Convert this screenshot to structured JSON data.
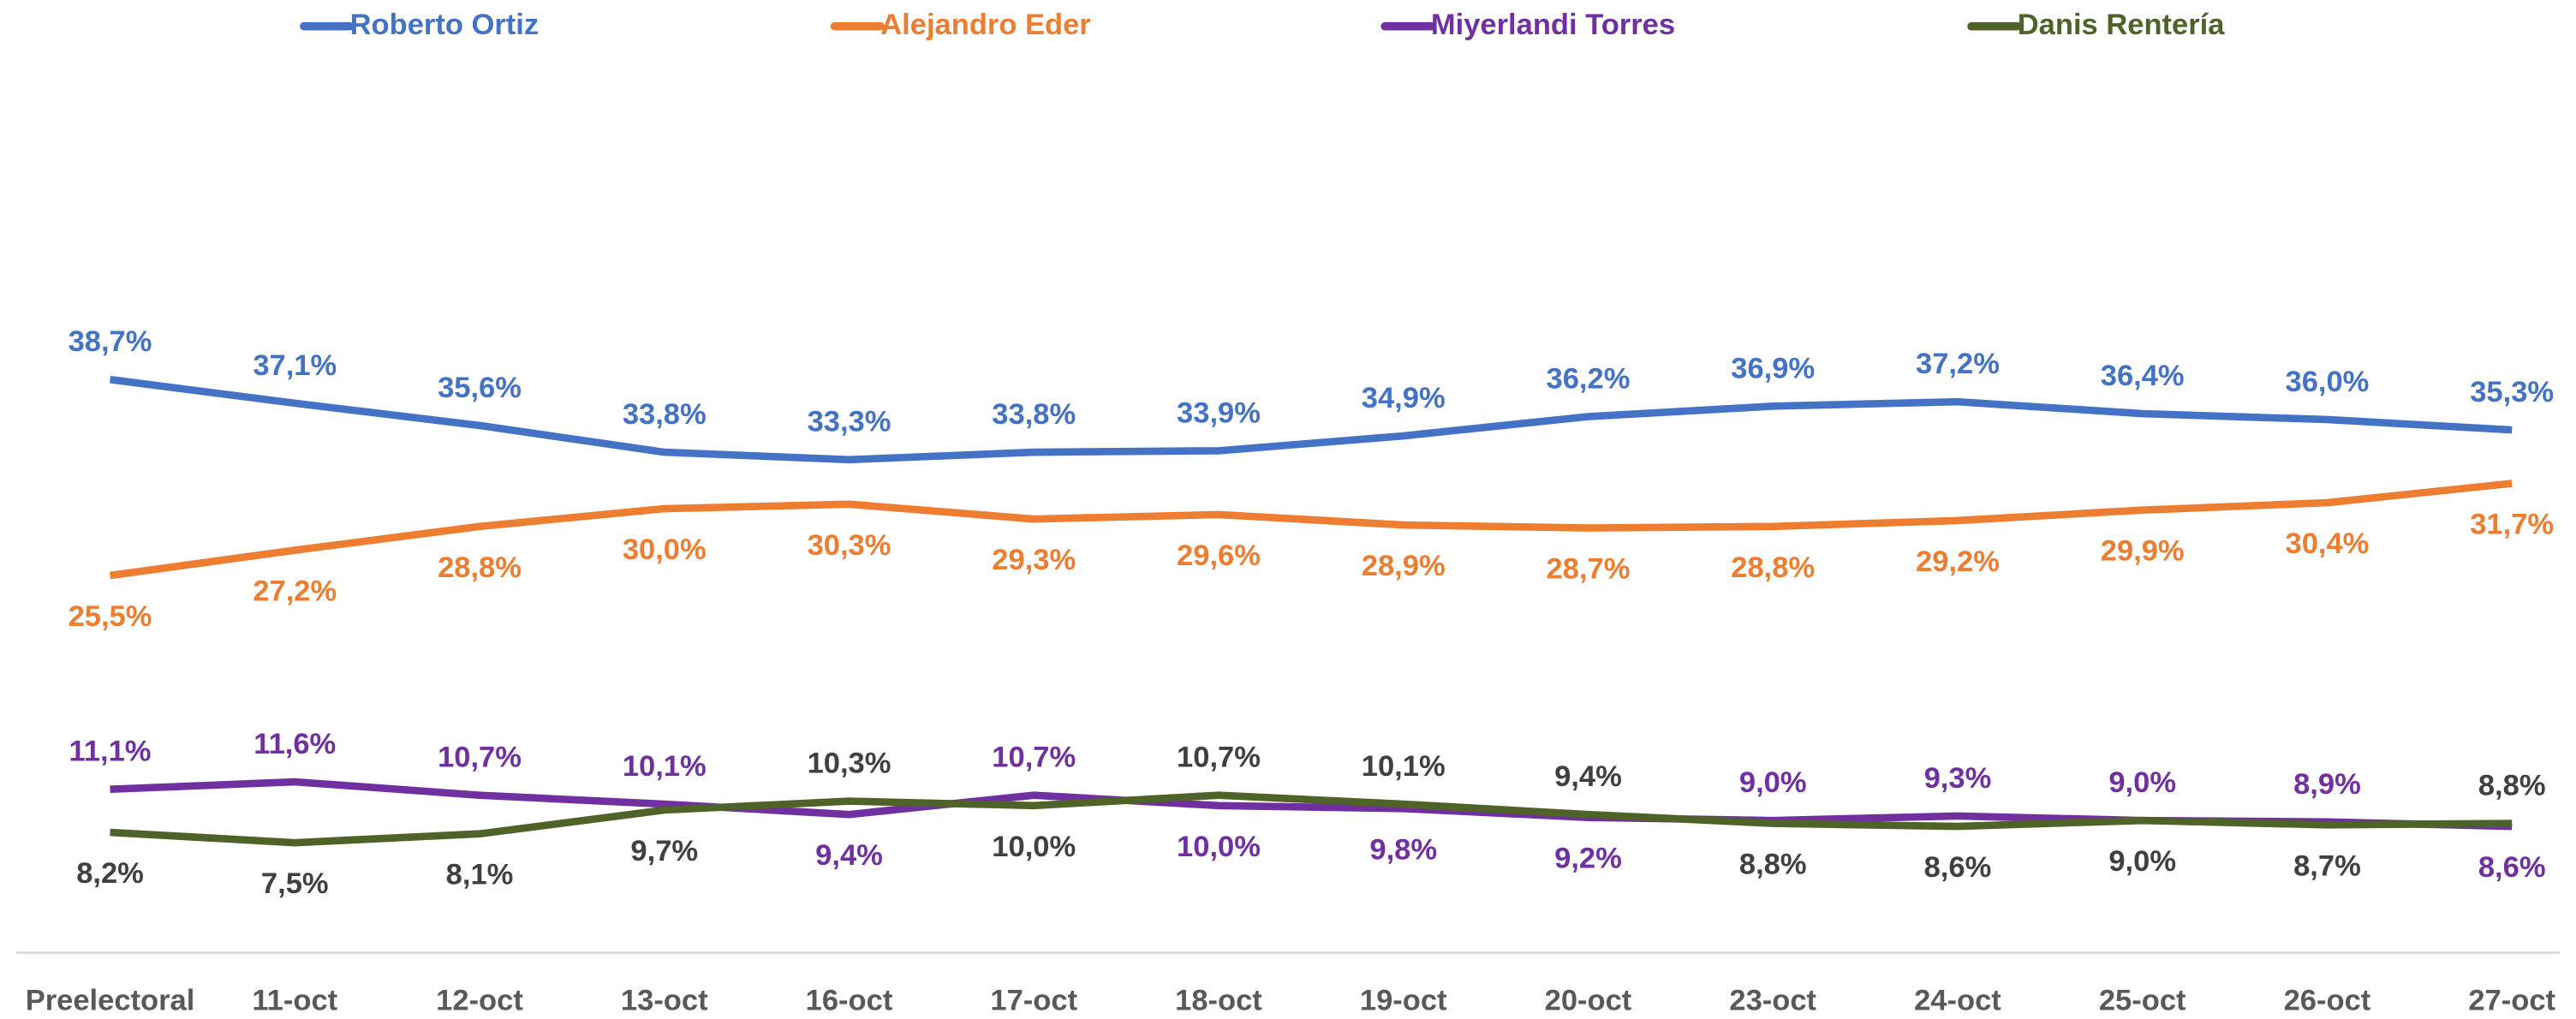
{
  "chart_data": {
    "type": "line",
    "categories": [
      "Preelectoral",
      "11-oct",
      "12-oct",
      "13-oct",
      "16-oct",
      "17-oct",
      "18-oct",
      "19-oct",
      "20-oct",
      "23-oct",
      "24-oct",
      "25-oct",
      "26-oct",
      "27-oct"
    ],
    "series": [
      {
        "name": "Roberto Ortiz",
        "color": "#4472c4",
        "values": [
          38.7,
          37.1,
          35.6,
          33.8,
          33.3,
          33.8,
          33.9,
          34.9,
          36.2,
          36.9,
          37.2,
          36.4,
          36.0,
          35.3
        ],
        "value_labels": [
          "38,7%",
          "37,1%",
          "35,6%",
          "33,8%",
          "33,3%",
          "33,8%",
          "33,9%",
          "34,9%",
          "36,2%",
          "36,9%",
          "37,2%",
          "36,4%",
          "36,0%",
          "35,3%"
        ]
      },
      {
        "name": "Alejandro Eder",
        "color": "#ed7d31",
        "values": [
          25.5,
          27.2,
          28.8,
          30.0,
          30.3,
          29.3,
          29.6,
          28.9,
          28.7,
          28.8,
          29.2,
          29.9,
          30.4,
          31.7
        ],
        "value_labels": [
          "25,5%",
          "27,2%",
          "28,8%",
          "30,0%",
          "30,3%",
          "29,3%",
          "29,6%",
          "28,9%",
          "28,7%",
          "28,8%",
          "29,2%",
          "29,9%",
          "30,4%",
          "31,7%"
        ]
      },
      {
        "name": "Miyerlandi Torres",
        "color": "#7030a0",
        "values": [
          11.1,
          11.6,
          10.7,
          10.1,
          9.4,
          10.7,
          10.0,
          9.8,
          9.2,
          9.0,
          9.3,
          9.0,
          8.9,
          8.6
        ],
        "value_labels": [
          "11,1%",
          "11,6%",
          "10,7%",
          "10,1%",
          "9,4%",
          "10,7%",
          "10,0%",
          "9,8%",
          "9,2%",
          "9,0%",
          "9,3%",
          "9,0%",
          "8,9%",
          "8,6%"
        ]
      },
      {
        "name": "Danis Rentería",
        "color": "#4f6228",
        "values": [
          8.2,
          7.5,
          8.1,
          9.7,
          10.3,
          10.0,
          10.7,
          10.1,
          9.4,
          8.8,
          8.6,
          9.0,
          8.7,
          8.8
        ],
        "value_labels": [
          "8,2%",
          "7,5%",
          "8,1%",
          "9,7%",
          "10,3%",
          "10,0%",
          "10,7%",
          "10,1%",
          "9,4%",
          "8,8%",
          "8,6%",
          "9,0%",
          "8,7%",
          "8,8%"
        ]
      }
    ],
    "legend": "top"
  }
}
